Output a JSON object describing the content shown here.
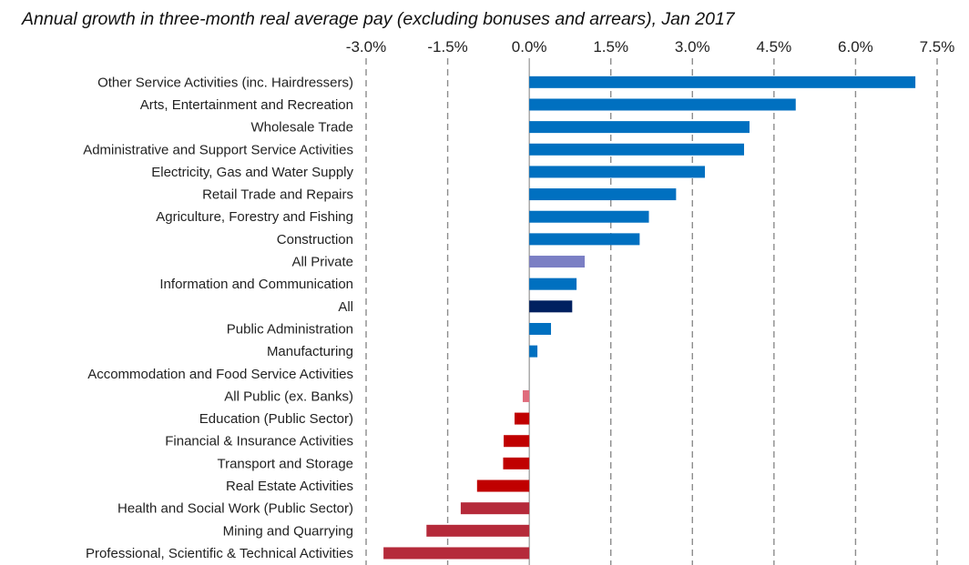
{
  "chart_data": {
    "type": "bar",
    "orientation": "horizontal",
    "title": "Annual growth in three-month real average pay (excluding bonuses and arrears), Jan 2017",
    "xlim": [
      -0.03,
      0.075
    ],
    "xticks": [
      -0.03,
      -0.015,
      0.0,
      0.015,
      0.03,
      0.045,
      0.06,
      0.075
    ],
    "xtick_labels": [
      "-3.0%",
      "-1.5%",
      "0.0%",
      "1.5%",
      "3.0%",
      "4.5%",
      "6.0%",
      "7.5%"
    ],
    "x_axis_position": "top",
    "grid": "vertical dashed",
    "categories": [
      "Other Service Activities (inc. Hairdressers)",
      "Arts, Entertainment and Recreation",
      "Wholesale Trade",
      "Administrative and Support Service Activities",
      "Electricity, Gas and Water Supply",
      "Retail Trade and Repairs",
      "Agriculture, Forestry and Fishing",
      "Construction",
      "All Private",
      "Information and Communication",
      "All",
      "Public Administration",
      "Manufacturing",
      "Accommodation and Food Service Activities",
      "All Public (ex. Banks)",
      "Education (Public Sector)",
      "Financial & Insurance Activities",
      "Transport and Storage",
      "Real Estate Activities",
      "Health and Social Work (Public Sector)",
      "Mining and Quarrying",
      "Professional, Scientific & Technical Activities"
    ],
    "values": [
      0.071,
      0.049,
      0.0405,
      0.0395,
      0.0323,
      0.027,
      0.022,
      0.0203,
      0.0102,
      0.0087,
      0.0079,
      0.004,
      0.0015,
      0.0,
      -0.0012,
      -0.0027,
      -0.0047,
      -0.0048,
      -0.0096,
      -0.0126,
      -0.0189,
      -0.0268
    ],
    "colors": [
      "#0070C0",
      "#0070C0",
      "#0070C0",
      "#0070C0",
      "#0070C0",
      "#0070C0",
      "#0070C0",
      "#0070C0",
      "#7B7FC4",
      "#0070C0",
      "#002060",
      "#0070C0",
      "#0070C0",
      "#0070C0",
      "#E06C7C",
      "#C00000",
      "#C00000",
      "#C00000",
      "#C00000",
      "#B52A3A",
      "#B52A3A",
      "#B52A3A"
    ]
  }
}
